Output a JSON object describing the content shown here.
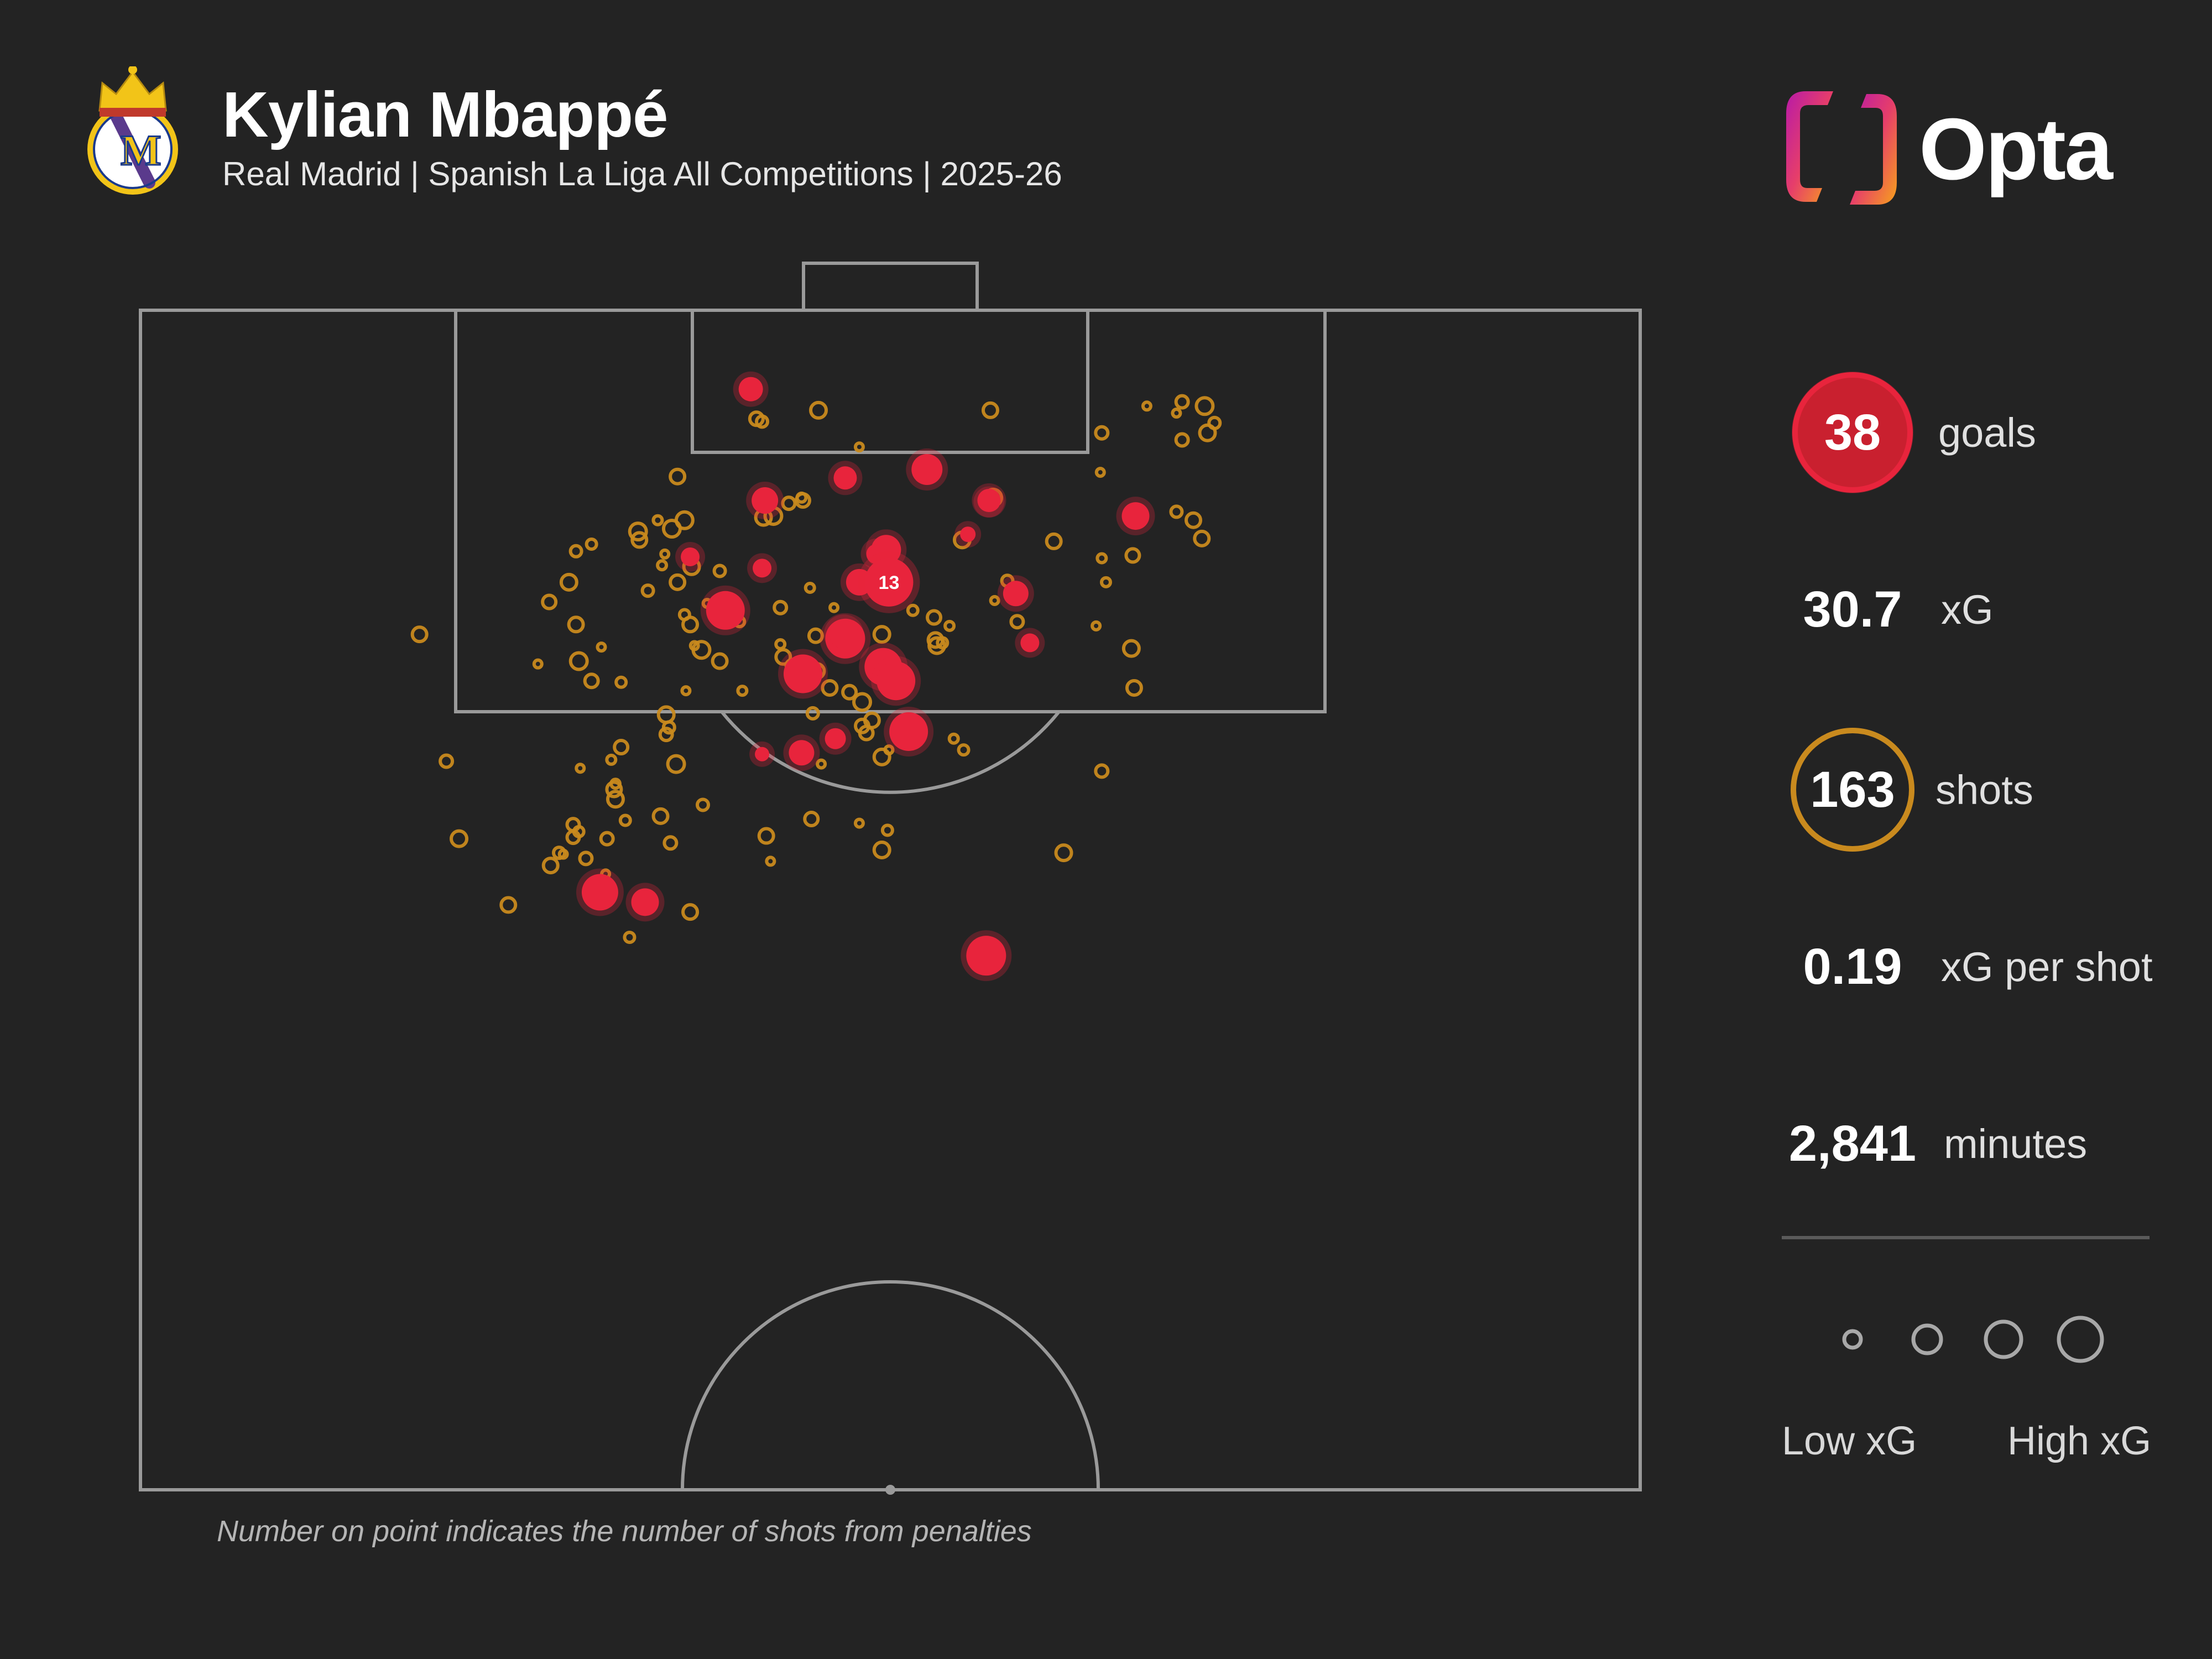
{
  "header": {
    "title": "Kylian Mbappé",
    "subtitle": "Real Madrid | Spanish La Liga All Competitions | 2025-26"
  },
  "logo": {
    "text": "Opta"
  },
  "stats": [
    {
      "value": "38",
      "label": "goals",
      "marker": "goal"
    },
    {
      "value": "30.7",
      "label": "xG",
      "marker": "none"
    },
    {
      "value": "163",
      "label": "shots",
      "marker": "shot"
    },
    {
      "value": "0.19",
      "label": "xG per shot",
      "marker": "none"
    },
    {
      "value": "2,841",
      "label": "minutes",
      "marker": "none"
    }
  ],
  "legend": {
    "low_label": "Low xG",
    "high_label": "High xG"
  },
  "footnote": "Number on point indicates the number of shots from penalties",
  "colors": {
    "background": "#232323",
    "pitch_lines": "#9a9a9a",
    "goal": "#e8243c",
    "shot": "#c98a1e"
  },
  "chart_data": {
    "type": "scatter",
    "title": "Kylian Mbappé",
    "subtitle": "Real Madrid | Spanish La Liga All Competitions | 2025-26",
    "xlim": [
      0,
      1064
    ],
    "ylim": [
      0,
      837
    ],
    "penalty": {
      "x": 531,
      "y": 193,
      "count": "13",
      "outcome": "goal"
    },
    "goals": [
      [
        433,
        56
      ],
      [
        443,
        135
      ],
      [
        441,
        183
      ],
      [
        390,
        175
      ],
      [
        415,
        213
      ],
      [
        500,
        119
      ],
      [
        558,
        113
      ],
      [
        602,
        135
      ],
      [
        522,
        173
      ],
      [
        529,
        170
      ],
      [
        510,
        193
      ],
      [
        587,
        159
      ],
      [
        500,
        233
      ],
      [
        602,
        136
      ],
      [
        621,
        201
      ],
      [
        631,
        236
      ],
      [
        499,
        230
      ],
      [
        527,
        253
      ],
      [
        470,
        258
      ],
      [
        536,
        263
      ],
      [
        706,
        146
      ],
      [
        469,
        314
      ],
      [
        441,
        315
      ],
      [
        493,
        304
      ],
      [
        545,
        299
      ],
      [
        326,
        413
      ],
      [
        358,
        420
      ],
      [
        600,
        458
      ]
    ],
    "shots": [
      [
        481,
        71
      ],
      [
        441,
        79
      ],
      [
        437,
        77
      ],
      [
        603,
        71
      ],
      [
        510,
        97
      ],
      [
        682,
        87
      ],
      [
        682,
        327
      ],
      [
        739,
        92
      ],
      [
        739,
        65
      ],
      [
        735,
        73
      ],
      [
        714,
        68
      ],
      [
        755,
        68
      ],
      [
        762,
        80
      ],
      [
        757,
        87
      ],
      [
        681,
        115
      ],
      [
        605,
        133
      ],
      [
        753,
        162
      ],
      [
        735,
        143
      ],
      [
        747,
        149
      ],
      [
        530,
        369
      ],
      [
        381,
        118
      ],
      [
        386,
        149
      ],
      [
        469,
        133
      ],
      [
        460,
        137
      ],
      [
        442,
        147
      ],
      [
        470,
        135
      ],
      [
        648,
        164
      ],
      [
        682,
        176
      ],
      [
        685,
        193
      ],
      [
        704,
        174
      ],
      [
        615,
        192
      ],
      [
        622,
        221
      ],
      [
        606,
        206
      ],
      [
        583,
        163
      ],
      [
        563,
        218
      ],
      [
        569,
        236
      ],
      [
        678,
        224
      ],
      [
        703,
        240
      ],
      [
        705,
        268
      ],
      [
        377,
        155
      ],
      [
        367,
        149
      ],
      [
        354,
        163
      ],
      [
        372,
        173
      ],
      [
        370,
        181
      ],
      [
        320,
        166
      ],
      [
        309,
        171
      ],
      [
        304,
        193
      ],
      [
        290,
        207
      ],
      [
        309,
        223
      ],
      [
        381,
        193
      ],
      [
        353,
        157
      ],
      [
        360,
        199
      ],
      [
        386,
        216
      ],
      [
        390,
        223
      ],
      [
        398,
        241
      ],
      [
        425,
        221
      ],
      [
        454,
        211
      ],
      [
        475,
        197
      ],
      [
        492,
        211
      ],
      [
        480,
        256
      ],
      [
        454,
        237
      ],
      [
        456,
        246
      ],
      [
        479,
        231
      ],
      [
        427,
        270
      ],
      [
        393,
        238
      ],
      [
        489,
        268
      ],
      [
        503,
        271
      ],
      [
        512,
        295
      ],
      [
        472,
        258
      ],
      [
        462,
        252
      ],
      [
        477,
        286
      ],
      [
        411,
        249
      ],
      [
        341,
        264
      ],
      [
        327,
        239
      ],
      [
        282,
        251
      ],
      [
        375,
        296
      ],
      [
        311,
        249
      ],
      [
        320,
        263
      ],
      [
        380,
        322
      ],
      [
        387,
        270
      ],
      [
        373,
        287
      ],
      [
        399,
        351
      ],
      [
        376,
        378
      ],
      [
        198,
        230
      ],
      [
        217,
        320
      ],
      [
        226,
        375
      ],
      [
        311,
        370
      ],
      [
        316,
        389
      ],
      [
        373,
        301
      ],
      [
        312,
        325
      ],
      [
        336,
        340
      ],
      [
        337,
        336
      ],
      [
        337,
        347
      ],
      [
        344,
        362
      ],
      [
        369,
        359
      ],
      [
        483,
        322
      ],
      [
        476,
        361
      ],
      [
        510,
        364
      ],
      [
        526,
        383
      ],
      [
        444,
        373
      ],
      [
        447,
        391
      ],
      [
        577,
        304
      ],
      [
        584,
        312
      ],
      [
        655,
        385
      ],
      [
        291,
        394
      ],
      [
        261,
        422
      ],
      [
        331,
        375
      ],
      [
        307,
        374
      ],
      [
        307,
        365
      ],
      [
        341,
        310
      ],
      [
        334,
        319
      ],
      [
        300,
        386
      ],
      [
        330,
        400
      ],
      [
        297,
        385
      ],
      [
        390,
        427
      ],
      [
        347,
        445
      ],
      [
        564,
        234
      ],
      [
        449,
        146
      ],
      [
        526,
        230
      ],
      [
        565,
        238
      ],
      [
        574,
        224
      ],
      [
        548,
        213
      ],
      [
        466,
        262
      ],
      [
        402,
        208
      ],
      [
        411,
        185
      ],
      [
        391,
        182
      ],
      [
        512,
        278
      ],
      [
        519,
        291
      ],
      [
        526,
        317
      ],
      [
        531,
        312
      ],
      [
        515,
        300
      ]
    ]
  }
}
